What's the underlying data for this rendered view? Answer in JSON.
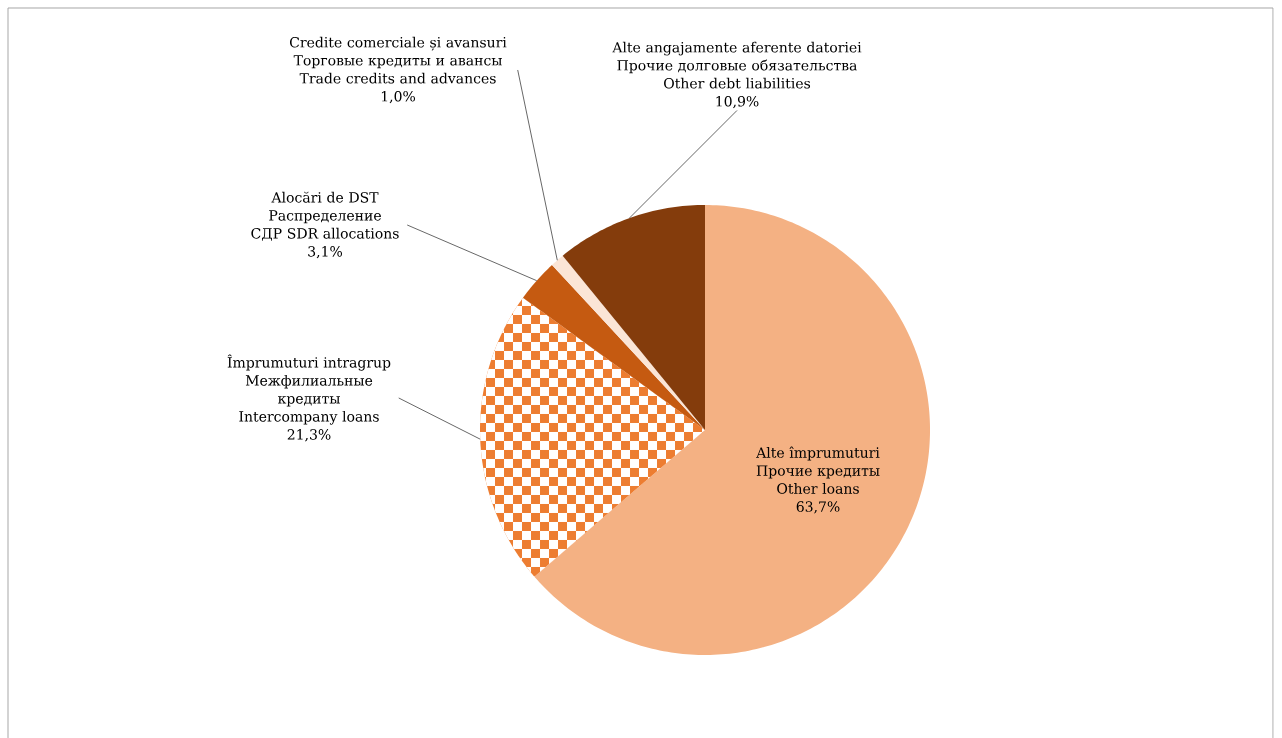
{
  "chart_data": {
    "type": "pie",
    "categories": [
      "Alte împrumuturi Прочие кредиты Other loans",
      "Împrumuturi intragrup Межфилиальные кредиты Intercompany loans",
      "Alocări de DST Распределение СДР SDR allocations",
      "Credite comerciale și avansuri Торговые кредиты и авансы Trade credits and advances",
      "Alte angajamente aferente datoriei Прочие долговые обязательства Other debt liabilities"
    ],
    "values": [
      63.7,
      21.3,
      3.1,
      1.0,
      10.9
    ],
    "colors": [
      "#f4b183",
      "#ed7d31",
      "#c55a11",
      "#fbe5d6",
      "#843c0c"
    ],
    "value_labels": [
      "63,7%",
      "21,3%",
      "3,1%",
      "1,0%",
      "10,9%"
    ]
  }
}
